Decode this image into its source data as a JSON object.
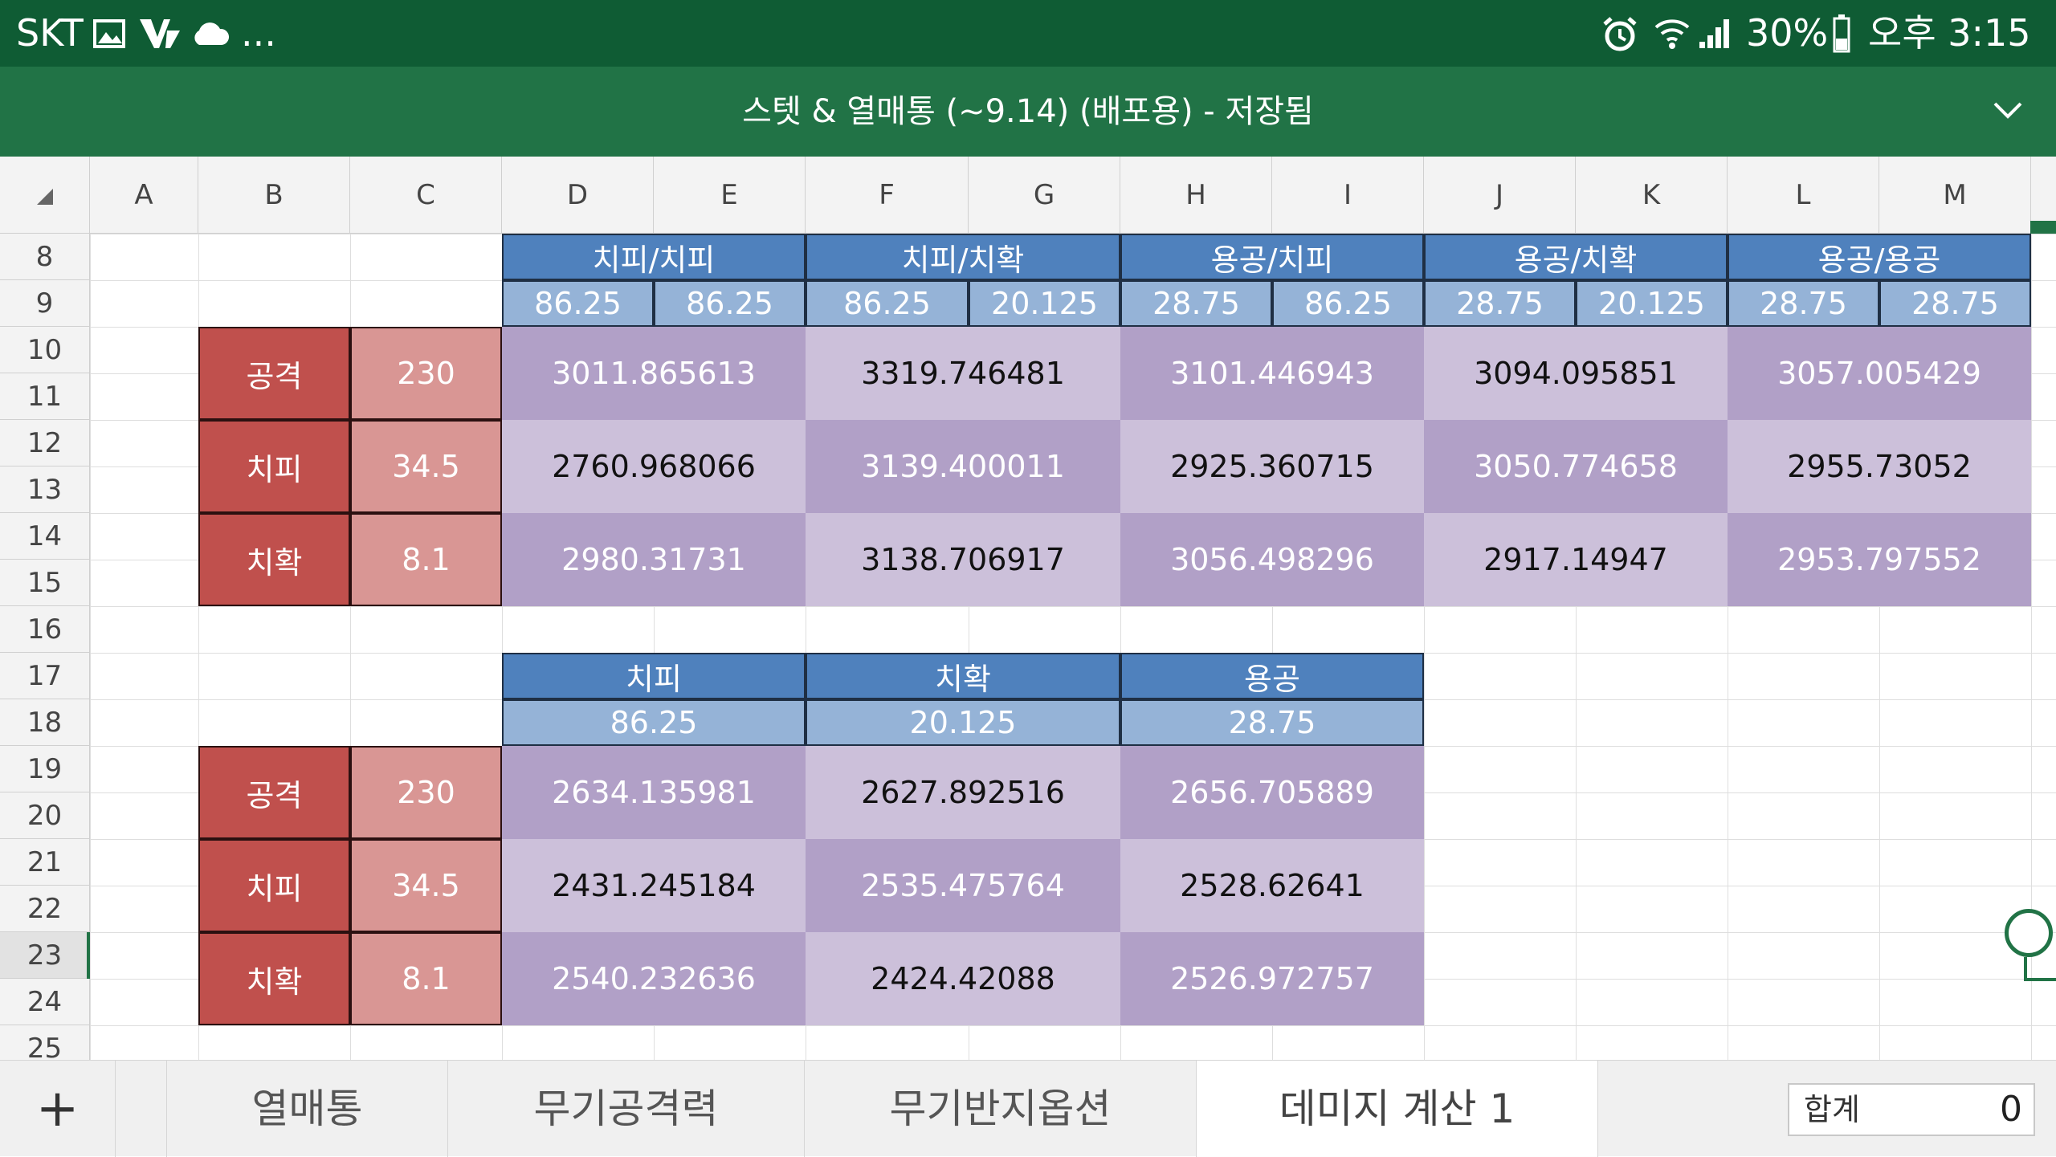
{
  "status_bar": {
    "carrier": "SKT",
    "ellipsis": "...",
    "battery": "30%",
    "time": "오후 3:15"
  },
  "title_bar": {
    "title": "스텟 & 열매통 (~9.14) (배포용) - 저장됨"
  },
  "columns": [
    "A",
    "B",
    "C",
    "D",
    "E",
    "F",
    "G",
    "H",
    "I",
    "J",
    "K",
    "L",
    "M"
  ],
  "rows": [
    "8",
    "9",
    "10",
    "11",
    "12",
    "13",
    "14",
    "15",
    "16",
    "17",
    "18",
    "19",
    "20",
    "21",
    "22",
    "23",
    "24",
    "25"
  ],
  "selected_row": "23",
  "table1": {
    "headers": [
      "치피/치피",
      "치피/치확",
      "용공/치피",
      "용공/치확",
      "용공/용공"
    ],
    "subheaders": [
      "86.25",
      "86.25",
      "86.25",
      "20.125",
      "28.75",
      "86.25",
      "28.75",
      "20.125",
      "28.75",
      "28.75"
    ],
    "rows": [
      {
        "label": "공격",
        "value": "230",
        "cells": [
          "3011.865613",
          "3319.746481",
          "3101.446943",
          "3094.095851",
          "3057.005429"
        ]
      },
      {
        "label": "치피",
        "value": "34.5",
        "cells": [
          "2760.968066",
          "3139.400011",
          "2925.360715",
          "3050.774658",
          "2955.73052"
        ]
      },
      {
        "label": "치확",
        "value": "8.1",
        "cells": [
          "2980.31731",
          "3138.706917",
          "3056.498296",
          "2917.14947",
          "2953.797552"
        ]
      }
    ]
  },
  "table2": {
    "headers": [
      "치피",
      "치확",
      "용공"
    ],
    "subheaders": [
      "86.25",
      "20.125",
      "28.75"
    ],
    "rows": [
      {
        "label": "공격",
        "value": "230",
        "cells": [
          "2634.135981",
          "2627.892516",
          "2656.705889"
        ]
      },
      {
        "label": "치피",
        "value": "34.5",
        "cells": [
          "2431.245184",
          "2535.475764",
          "2528.62641"
        ]
      },
      {
        "label": "치확",
        "value": "8.1",
        "cells": [
          "2540.232636",
          "2424.42088",
          "2526.972757"
        ]
      }
    ]
  },
  "sheet_tabs": {
    "add_label": "+",
    "tabs": [
      "열매통",
      "무기공격력",
      "무기반지옵션",
      "데미지 계산 1"
    ],
    "active": "데미지 계산 1"
  },
  "summary": {
    "label": "합계",
    "value": "0"
  },
  "colors": {
    "status_bar": "#0f5c34",
    "title_bar": "#217346",
    "header_dark": "#4f81bd",
    "header_light": "#95b3d7",
    "label_red": "#c0504d",
    "value_pink": "#d99694",
    "purple_dark": "#b1a0c7",
    "purple_light": "#ccc0da"
  }
}
